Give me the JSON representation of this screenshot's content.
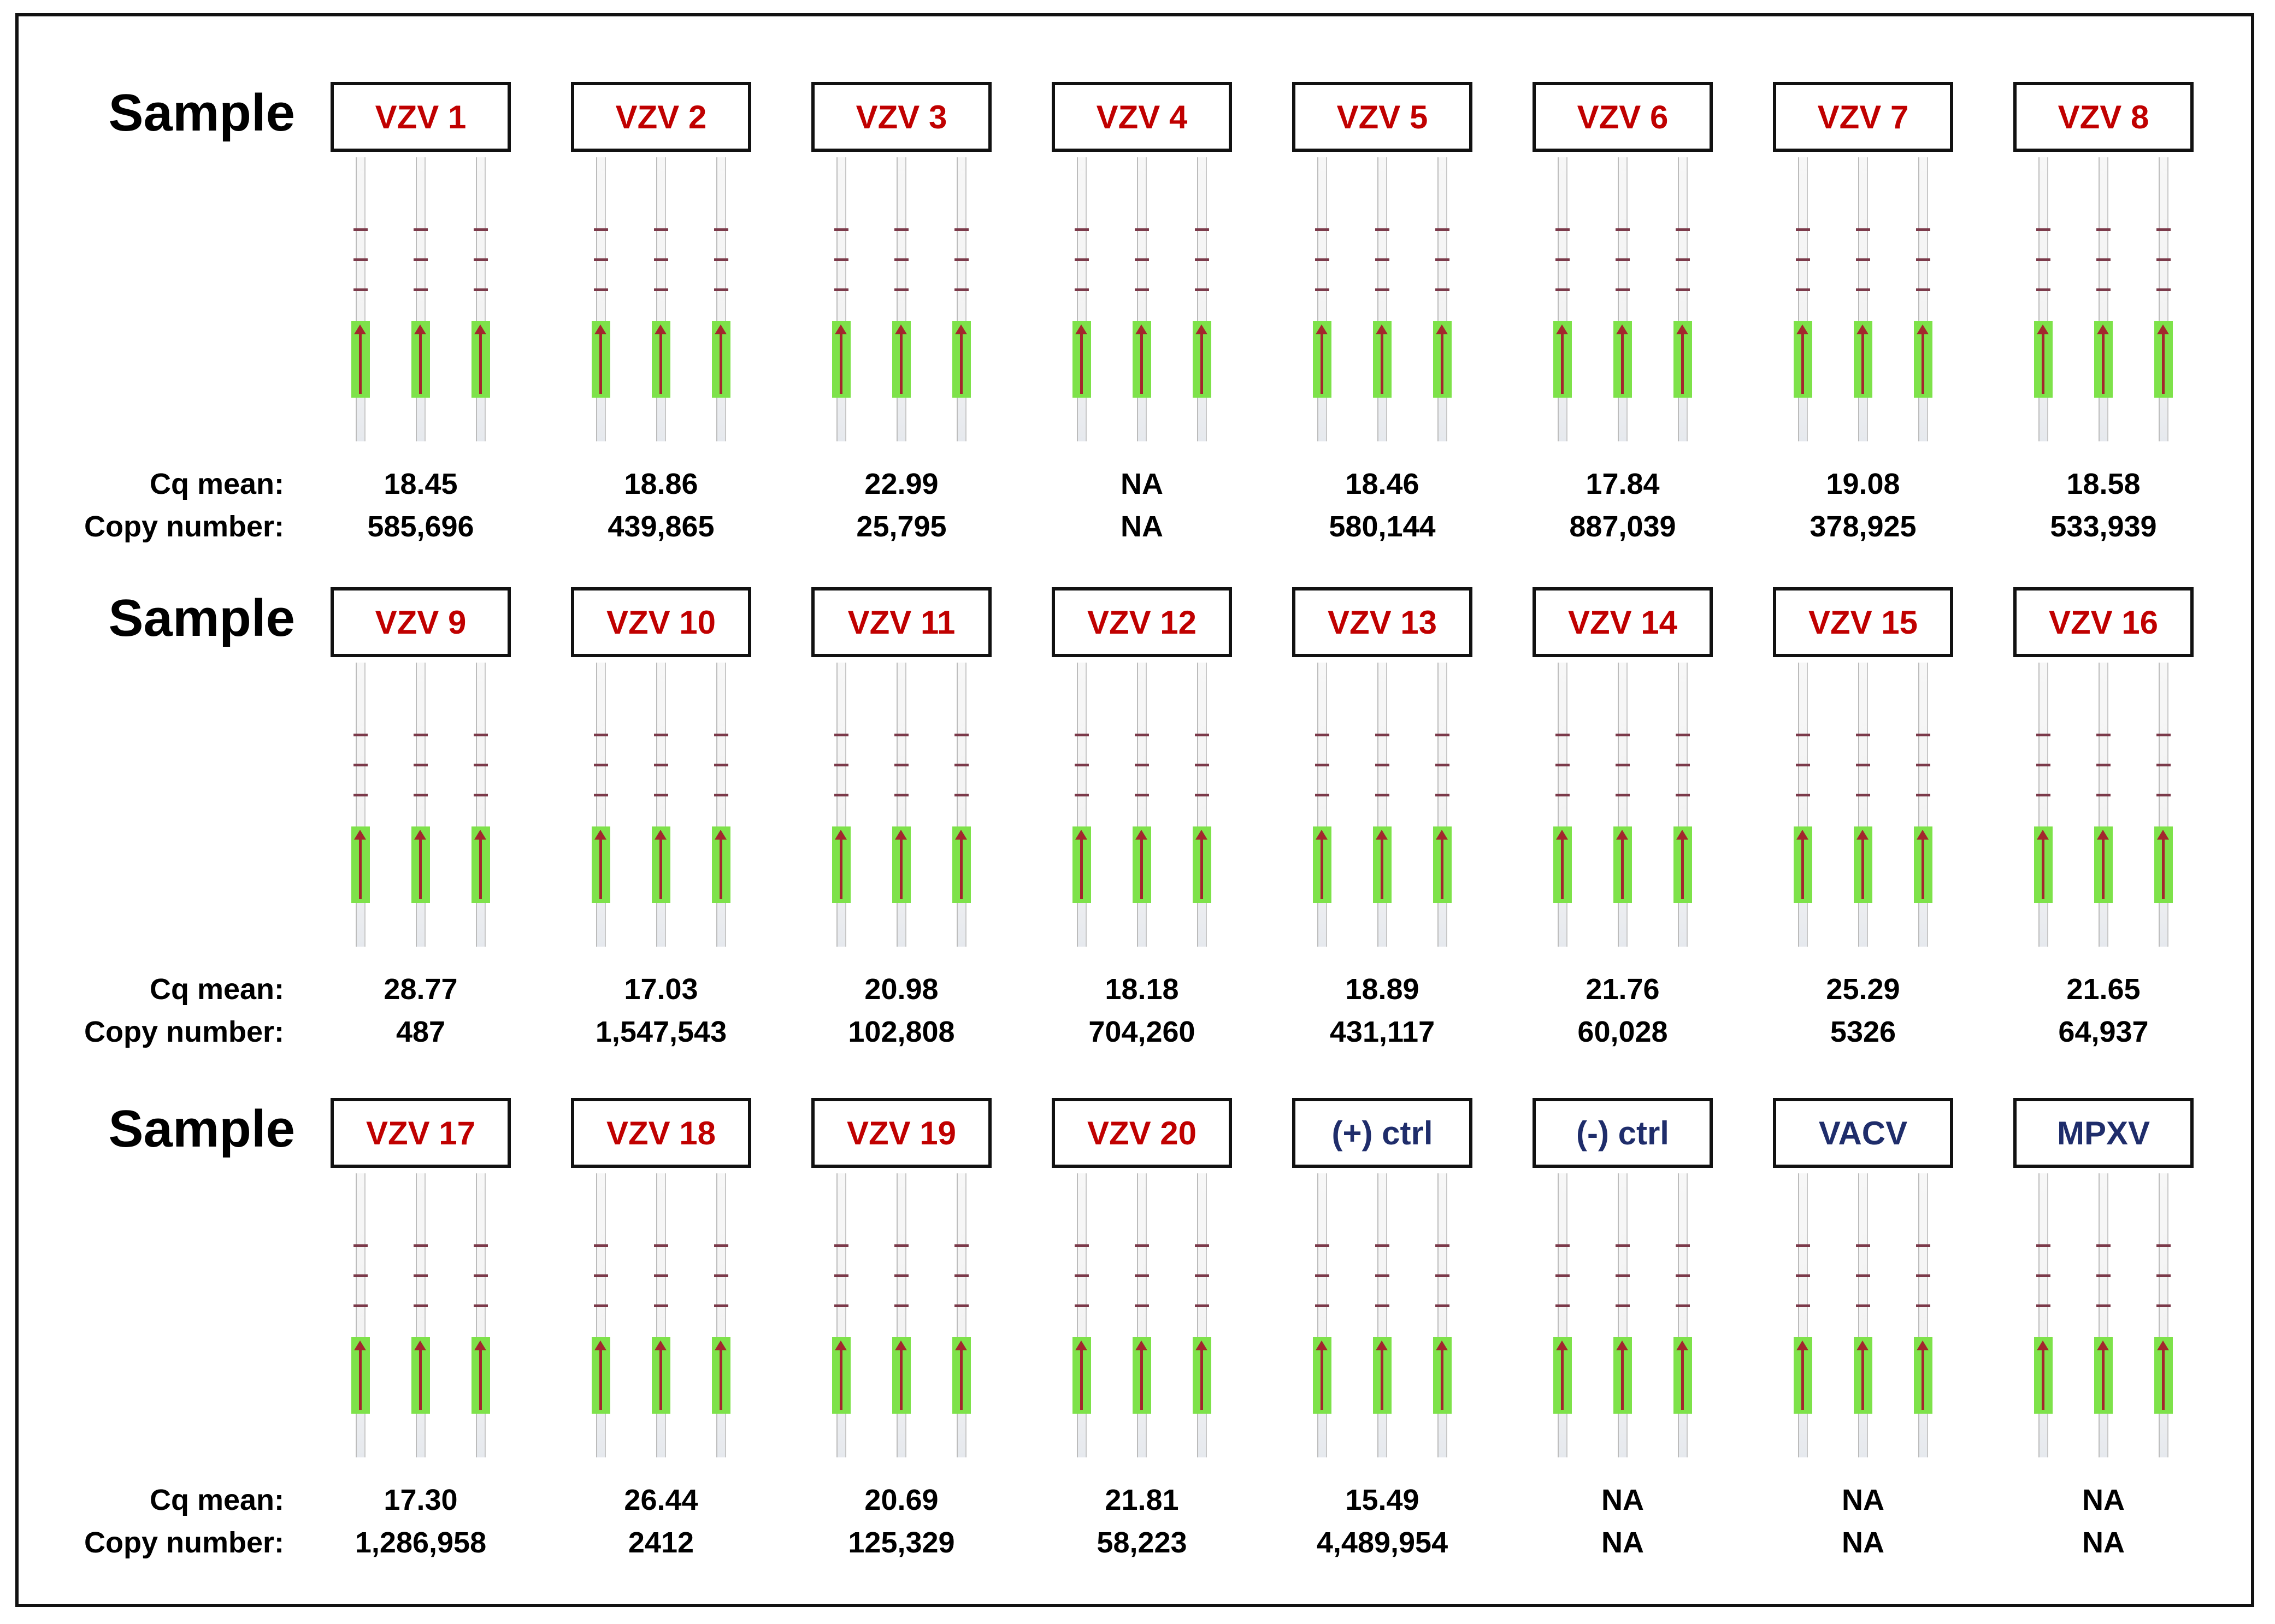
{
  "row_title": "Sample",
  "metric_labels": {
    "cq": "Cq mean:",
    "copy": "Copy number:"
  },
  "colors": {
    "sample_label": "#c00000",
    "control_label": "#1f2d6b",
    "pad": "#7ee24a",
    "arrow": "#a3272d",
    "line": "#7b3a4a"
  },
  "rows": [
    {
      "samples": [
        {
          "label": "VZV 1",
          "color": "red",
          "cq": "18.45",
          "copy": "585,696"
        },
        {
          "label": "VZV 2",
          "color": "red",
          "cq": "18.86",
          "copy": "439,865"
        },
        {
          "label": "VZV 3",
          "color": "red",
          "cq": "22.99",
          "copy": "25,795"
        },
        {
          "label": "VZV 4",
          "color": "red",
          "cq": "NA",
          "copy": "NA"
        },
        {
          "label": "VZV 5",
          "color": "red",
          "cq": "18.46",
          "copy": "580,144"
        },
        {
          "label": "VZV 6",
          "color": "red",
          "cq": "17.84",
          "copy": "887,039"
        },
        {
          "label": "VZV 7",
          "color": "red",
          "cq": "19.08",
          "copy": "378,925"
        },
        {
          "label": "VZV 8",
          "color": "red",
          "cq": "18.58",
          "copy": "533,939"
        }
      ]
    },
    {
      "samples": [
        {
          "label": "VZV 9",
          "color": "red",
          "cq": "28.77",
          "copy": "487"
        },
        {
          "label": "VZV 10",
          "color": "red",
          "cq": "17.03",
          "copy": "1,547,543"
        },
        {
          "label": "VZV 11",
          "color": "red",
          "cq": "20.98",
          "copy": "102,808"
        },
        {
          "label": "VZV 12",
          "color": "red",
          "cq": "18.18",
          "copy": "704,260"
        },
        {
          "label": "VZV 13",
          "color": "red",
          "cq": "18.89",
          "copy": "431,117"
        },
        {
          "label": "VZV 14",
          "color": "red",
          "cq": "21.76",
          "copy": "60,028"
        },
        {
          "label": "VZV 15",
          "color": "red",
          "cq": "25.29",
          "copy": "5326"
        },
        {
          "label": "VZV 16",
          "color": "red",
          "cq": "21.65",
          "copy": "64,937"
        }
      ]
    },
    {
      "samples": [
        {
          "label": "VZV 17",
          "color": "red",
          "cq": "17.30",
          "copy": "1,286,958"
        },
        {
          "label": "VZV 18",
          "color": "red",
          "cq": "26.44",
          "copy": "2412"
        },
        {
          "label": "VZV 19",
          "color": "red",
          "cq": "20.69",
          "copy": "125,329"
        },
        {
          "label": "VZV 20",
          "color": "red",
          "cq": "21.81",
          "copy": "58,223"
        },
        {
          "label": "(+) ctrl",
          "color": "navy",
          "cq": "15.49",
          "copy": "4,489,954"
        },
        {
          "label": "(-) ctrl",
          "color": "navy",
          "cq": "NA",
          "copy": "NA"
        },
        {
          "label": "VACV",
          "color": "navy",
          "cq": "NA",
          "copy": "NA"
        },
        {
          "label": "MPXV",
          "color": "navy",
          "cq": "NA",
          "copy": "NA"
        }
      ]
    }
  ]
}
